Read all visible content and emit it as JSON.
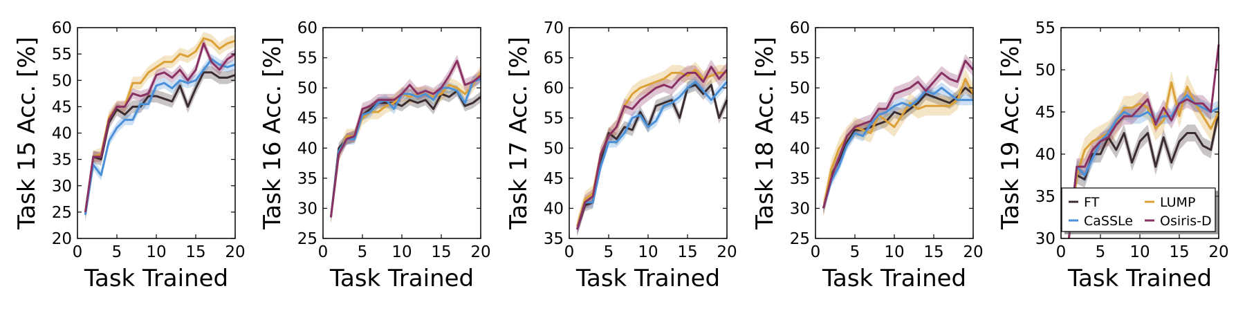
{
  "chart_data": [
    {
      "type": "line",
      "xlabel": "Task Trained",
      "ylabel": "Task 15 Acc. [%]",
      "xlim": [
        0,
        20
      ],
      "ylim": [
        20,
        60
      ],
      "xticks": [
        0,
        5,
        10,
        15,
        20
      ],
      "yticks": [
        20,
        25,
        30,
        35,
        40,
        45,
        50,
        55,
        60
      ],
      "x": [
        1,
        2,
        3,
        4,
        5,
        6,
        7,
        8,
        9,
        10,
        11,
        12,
        13,
        14,
        15,
        16,
        17,
        18,
        19,
        20
      ],
      "series": [
        {
          "name": "FT",
          "color": "#3b2c30",
          "values": [
            24.5,
            35.5,
            35,
            42,
            44.5,
            43.5,
            45,
            45,
            47,
            47,
            46.5,
            46,
            49,
            45,
            48.5,
            51.5,
            51.5,
            50.5,
            50.5,
            51
          ],
          "band": 1.2
        },
        {
          "name": "LUMP",
          "color": "#dba036",
          "values": [
            25,
            35.5,
            36,
            43,
            45,
            45,
            49.5,
            49.5,
            51.5,
            52.5,
            53.5,
            53.5,
            55,
            54.5,
            55.5,
            58,
            57.5,
            56,
            57,
            57.5
          ],
          "band": 1.2
        },
        {
          "name": "CaSSLe",
          "color": "#4a90d9",
          "values": [
            24.5,
            34,
            32,
            38.5,
            41,
            42.5,
            42.5,
            45.5,
            45.5,
            49,
            49.5,
            48.5,
            50,
            49.5,
            50,
            52,
            54,
            53,
            52.5,
            53
          ],
          "band": 1.0
        },
        {
          "name": "Osiris-D",
          "color": "#8a3163",
          "values": [
            25,
            35.5,
            35.5,
            42.5,
            45,
            45,
            47.5,
            47,
            47.5,
            51,
            51.5,
            50.5,
            52,
            50,
            52,
            57,
            53.5,
            52,
            54,
            55
          ],
          "band": 1.0
        }
      ]
    },
    {
      "type": "line",
      "xlabel": "Task Trained",
      "ylabel": "Task 16 Acc. [%]",
      "xlim": [
        0,
        20
      ],
      "ylim": [
        25,
        60
      ],
      "xticks": [
        0,
        5,
        10,
        15,
        20
      ],
      "yticks": [
        25,
        30,
        35,
        40,
        45,
        50,
        55,
        60
      ],
      "x": [
        1,
        2,
        3,
        4,
        5,
        6,
        7,
        8,
        9,
        10,
        11,
        12,
        13,
        14,
        15,
        16,
        17,
        18,
        19,
        20
      ],
      "series": [
        {
          "name": "FT",
          "color": "#3b2c30",
          "values": [
            28.5,
            40,
            41.5,
            42,
            45.5,
            46.5,
            47.5,
            47.5,
            47.5,
            47,
            48,
            47.5,
            48,
            46.5,
            49,
            48.5,
            49.5,
            47,
            47.5,
            48.5
          ],
          "band": 0.9
        },
        {
          "name": "LUMP",
          "color": "#dba036",
          "values": [
            28.5,
            39,
            42,
            42,
            45,
            46,
            46,
            47,
            47.5,
            49,
            48.5,
            49,
            49,
            48.5,
            49,
            50.5,
            50,
            49,
            50.5,
            52.5
          ],
          "band": 1.2
        },
        {
          "name": "CaSSLe",
          "color": "#4a90d9",
          "values": [
            28.5,
            39.5,
            41.5,
            41.5,
            45.5,
            46,
            47.5,
            48,
            46.5,
            49,
            49,
            48.5,
            49,
            48,
            50,
            50,
            49.5,
            47.5,
            51,
            51.5
          ],
          "band": 0.9
        },
        {
          "name": "Osiris-D",
          "color": "#8a3163",
          "values": [
            28.5,
            39,
            41.5,
            42,
            46.5,
            47,
            48,
            48,
            48,
            49,
            50.5,
            49,
            49.5,
            49,
            50,
            52,
            54.5,
            50.5,
            51,
            52
          ],
          "band": 1.0
        }
      ]
    },
    {
      "type": "line",
      "xlabel": "Task Trained",
      "ylabel": "Task 17 Acc. [%]",
      "xlim": [
        0,
        20
      ],
      "ylim": [
        35,
        70
      ],
      "xticks": [
        0,
        5,
        10,
        15,
        20
      ],
      "yticks": [
        35,
        40,
        45,
        50,
        55,
        60,
        65,
        70
      ],
      "x": [
        1,
        2,
        3,
        4,
        5,
        6,
        7,
        8,
        9,
        10,
        11,
        12,
        13,
        14,
        15,
        16,
        17,
        18,
        19,
        20
      ],
      "series": [
        {
          "name": "FT",
          "color": "#3b2c30",
          "values": [
            36.5,
            40.5,
            41,
            48,
            52.5,
            51.5,
            53.5,
            53,
            56,
            53.5,
            57,
            57.5,
            58,
            55,
            60,
            60.5,
            59,
            60.5,
            55,
            58
          ],
          "band": 1.0
        },
        {
          "name": "LUMP",
          "color": "#dba036",
          "values": [
            37,
            41.5,
            42.5,
            49,
            52,
            53.5,
            57,
            59,
            60,
            60.5,
            61,
            61.5,
            62.5,
            62.5,
            62,
            63,
            61.5,
            62,
            62.5,
            62.5
          ],
          "band": 1.3
        },
        {
          "name": "CaSSLe",
          "color": "#4a90d9",
          "values": [
            36.5,
            41,
            41,
            47,
            51,
            51,
            52.5,
            55,
            55.5,
            53.5,
            54.5,
            57,
            57.5,
            58.5,
            60,
            61,
            59.5,
            58,
            59.5,
            61
          ],
          "band": 0.9
        },
        {
          "name": "Osiris-D",
          "color": "#8a3163",
          "values": [
            36.5,
            41,
            42,
            49,
            52,
            53.5,
            57,
            56.5,
            58,
            59,
            60,
            60.5,
            60,
            61.5,
            62.5,
            62.5,
            61,
            63.5,
            61.5,
            63
          ],
          "band": 1.2
        }
      ]
    },
    {
      "type": "line",
      "xlabel": "Task Trained",
      "ylabel": "Task 18 Acc. [%]",
      "xlim": [
        0,
        20
      ],
      "ylim": [
        25,
        60
      ],
      "xticks": [
        0,
        5,
        10,
        15,
        20
      ],
      "yticks": [
        25,
        30,
        35,
        40,
        45,
        50,
        55,
        60
      ],
      "x": [
        1,
        2,
        3,
        4,
        5,
        6,
        7,
        8,
        9,
        10,
        11,
        12,
        13,
        14,
        15,
        16,
        17,
        18,
        19,
        20
      ],
      "series": [
        {
          "name": "FT",
          "color": "#3b2c30",
          "values": [
            30,
            35.5,
            38,
            41,
            43,
            43,
            43.5,
            44,
            44.5,
            46,
            45.5,
            46.5,
            47.5,
            49,
            48.5,
            48,
            47.5,
            48.5,
            50,
            49
          ],
          "band": 1.0
        },
        {
          "name": "LUMP",
          "color": "#dba036",
          "values": [
            30,
            36.5,
            40,
            42,
            43.5,
            43,
            42.5,
            45.5,
            44.5,
            43.5,
            45.5,
            47.5,
            46.5,
            47,
            47,
            47,
            47,
            48,
            51.5,
            49
          ],
          "band": 1.6
        },
        {
          "name": "CaSSLe",
          "color": "#4a90d9",
          "values": [
            30,
            34.5,
            37,
            40.5,
            42.5,
            42,
            44,
            45.5,
            46,
            47,
            47.5,
            47,
            48,
            49.5,
            49,
            50,
            49,
            48,
            48,
            48
          ],
          "band": 0.9
        },
        {
          "name": "Osiris-D",
          "color": "#8a3163",
          "values": [
            30,
            35,
            38.5,
            42,
            43.5,
            44,
            44.5,
            46.5,
            46.5,
            49,
            49.5,
            50,
            51,
            49.5,
            51,
            52.5,
            51.5,
            51,
            54.5,
            53
          ],
          "band": 1.1
        }
      ]
    },
    {
      "type": "line",
      "xlabel": "Task Trained",
      "ylabel": "Task 19 Acc. [%]",
      "xlim": [
        0,
        20
      ],
      "ylim": [
        30,
        55
      ],
      "xticks": [
        0,
        5,
        10,
        15,
        20
      ],
      "yticks": [
        30,
        35,
        40,
        45,
        50,
        55
      ],
      "legend": "bottom-right",
      "x": [
        1,
        2,
        3,
        4,
        5,
        6,
        7,
        8,
        9,
        10,
        11,
        12,
        13,
        14,
        15,
        16,
        17,
        18,
        19,
        20
      ],
      "series": [
        {
          "name": "FT",
          "color": "#3b2c30",
          "values": [
            30,
            37.5,
            37,
            40,
            40,
            42,
            40.5,
            42.5,
            39,
            41.5,
            42.5,
            38.5,
            42,
            39,
            41.5,
            42.5,
            42.5,
            41,
            40.5,
            45
          ],
          "band": 1.0
        },
        {
          "name": "LUMP",
          "color": "#dba036",
          "values": [
            30,
            37.5,
            40.5,
            41.5,
            42,
            42.5,
            43.5,
            45.5,
            45.5,
            46,
            45.5,
            43,
            44,
            48.5,
            44.5,
            48,
            46,
            44.5,
            43,
            45
          ],
          "band": 1.4
        },
        {
          "name": "CaSSLe",
          "color": "#4a90d9",
          "values": [
            30,
            38.5,
            37.5,
            39.5,
            41.5,
            42.5,
            44,
            45,
            44.5,
            44.5,
            45,
            44,
            44.5,
            44.5,
            46,
            47,
            46,
            45.5,
            45,
            45.5
          ],
          "band": 0.9
        },
        {
          "name": "Osiris-D",
          "color": "#8a3163",
          "values": [
            30,
            38.5,
            38.5,
            40.5,
            41.5,
            42,
            43.5,
            44.5,
            44.5,
            45.5,
            46.5,
            43.5,
            45.5,
            44,
            46,
            46.5,
            46,
            46,
            45,
            53
          ],
          "band": 1.0
        }
      ]
    }
  ]
}
